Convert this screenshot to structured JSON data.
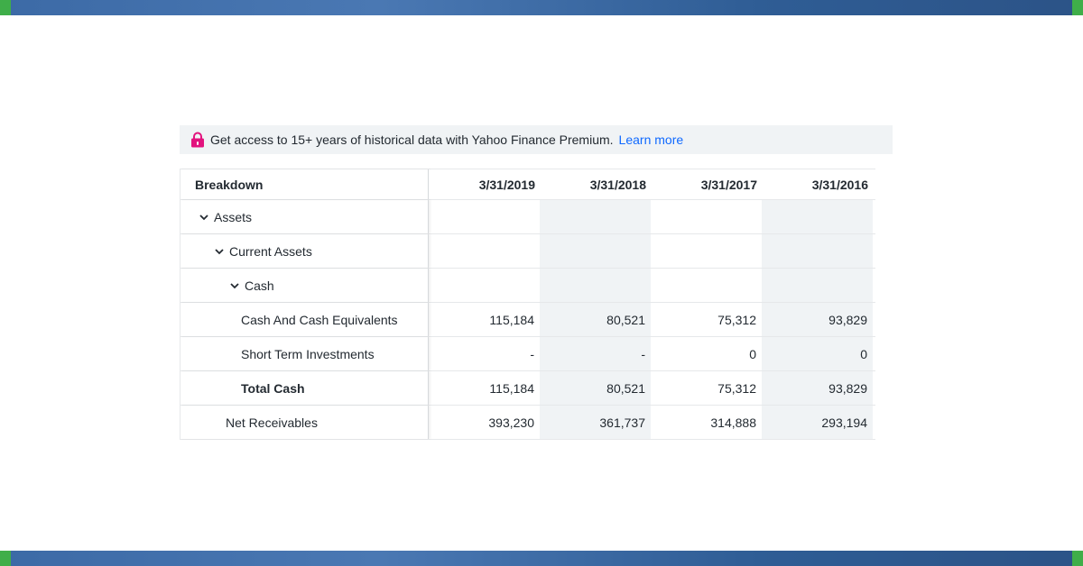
{
  "promo": {
    "text": "Get access to 15+ years of historical data with Yahoo Finance Premium.",
    "link": "Learn more"
  },
  "table": {
    "header": {
      "label": "Breakdown",
      "dates": [
        "3/31/2019",
        "3/31/2018",
        "3/31/2017",
        "3/31/2016"
      ]
    },
    "rows": [
      {
        "label": "Assets",
        "values": [
          "",
          "",
          "",
          ""
        ]
      },
      {
        "label": "Current Assets",
        "values": [
          "",
          "",
          "",
          ""
        ]
      },
      {
        "label": "Cash",
        "values": [
          "",
          "",
          "",
          ""
        ]
      },
      {
        "label": "Cash And Cash Equivalents",
        "values": [
          "115,184",
          "80,521",
          "75,312",
          "93,829"
        ]
      },
      {
        "label": "Short Term Investments",
        "values": [
          "-",
          "-",
          "0",
          "0"
        ]
      },
      {
        "label": "Total Cash",
        "values": [
          "115,184",
          "80,521",
          "75,312",
          "93,829"
        ]
      },
      {
        "label": "Net Receivables",
        "values": [
          "393,230",
          "361,737",
          "314,888",
          "293,194"
        ]
      }
    ]
  },
  "colors": {
    "link": "#0f69ff",
    "lock": "#e2137e",
    "shade": "#f0f3f5",
    "band": "#3c6aa6",
    "band_edge": "#3fae49"
  }
}
